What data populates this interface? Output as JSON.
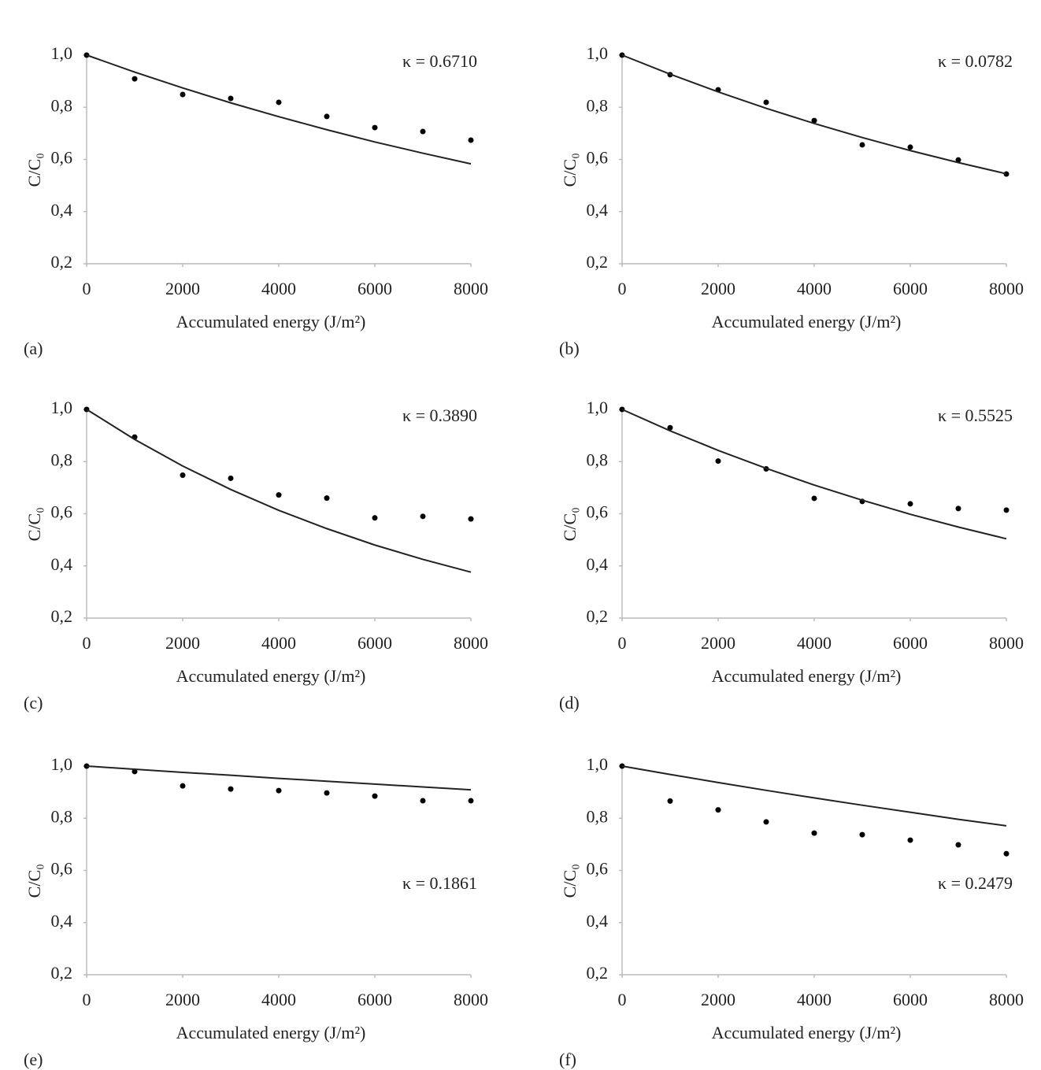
{
  "chart_data": [
    {
      "type": "scatter",
      "panel_label": "(a)",
      "annotation": "κ = 0.6710",
      "annotation_position": "top-right",
      "xlabel": "Accumulated energy (J/m²)",
      "ylabel": "C/C₀",
      "x": [
        0,
        1000,
        2000,
        3000,
        4000,
        5000,
        6000,
        7000,
        8000
      ],
      "series": [
        {
          "type": "points",
          "color": "#000000",
          "values": [
            1.0,
            0.909,
            0.849,
            0.834,
            0.819,
            0.765,
            0.722,
            0.707,
            0.674
          ]
        },
        {
          "type": "line",
          "color": "#222222",
          "values": [
            1.0,
            0.935,
            0.874,
            0.817,
            0.764,
            0.714,
            0.667,
            0.624,
            0.583
          ]
        }
      ],
      "xlim": [
        0,
        8000
      ],
      "xticks": [
        0,
        2000,
        4000,
        6000,
        8000
      ],
      "ylim": [
        0.2,
        1.0
      ],
      "yticks": [
        {
          "value": 0.2,
          "label": "0,2"
        },
        {
          "value": 0.4,
          "label": "0,4"
        },
        {
          "value": 0.6,
          "label": "0,6"
        },
        {
          "value": 0.8,
          "label": "0,8"
        },
        {
          "value": 1.0,
          "label": "1,0"
        }
      ]
    },
    {
      "type": "scatter",
      "panel_label": "(b)",
      "annotation": "κ = 0.0782",
      "annotation_position": "top-right",
      "xlabel": "Accumulated energy (J/m²)",
      "ylabel": "C/C₀",
      "x": [
        0,
        1000,
        2000,
        3000,
        4000,
        5000,
        6000,
        7000,
        8000
      ],
      "series": [
        {
          "type": "points",
          "color": "#000000",
          "values": [
            1.0,
            0.925,
            0.867,
            0.819,
            0.749,
            0.656,
            0.647,
            0.598,
            0.544
          ]
        },
        {
          "type": "line",
          "color": "#222222",
          "values": [
            1.0,
            0.927,
            0.859,
            0.796,
            0.738,
            0.684,
            0.634,
            0.588,
            0.545
          ]
        }
      ],
      "xlim": [
        0,
        8000
      ],
      "xticks": [
        0,
        2000,
        4000,
        6000,
        8000
      ],
      "ylim": [
        0.2,
        1.0
      ],
      "yticks": [
        {
          "value": 0.2,
          "label": "0,2"
        },
        {
          "value": 0.4,
          "label": "0,4"
        },
        {
          "value": 0.6,
          "label": "0,6"
        },
        {
          "value": 0.8,
          "label": "0,8"
        },
        {
          "value": 1.0,
          "label": "1,0"
        }
      ]
    },
    {
      "type": "scatter",
      "panel_label": "(c)",
      "annotation": "κ = 0.3890",
      "annotation_position": "top-right",
      "xlabel": "Accumulated energy (J/m²)",
      "ylabel": "C/C₀",
      "x": [
        0,
        1000,
        2000,
        3000,
        4000,
        5000,
        6000,
        7000,
        8000
      ],
      "series": [
        {
          "type": "points",
          "color": "#000000",
          "values": [
            1.0,
            0.894,
            0.748,
            0.736,
            0.672,
            0.66,
            0.584,
            0.59,
            0.58
          ]
        },
        {
          "type": "line",
          "color": "#222222",
          "values": [
            1.0,
            0.885,
            0.783,
            0.693,
            0.613,
            0.543,
            0.48,
            0.425,
            0.376
          ]
        }
      ],
      "xlim": [
        0,
        8000
      ],
      "xticks": [
        0,
        2000,
        4000,
        6000,
        8000
      ],
      "ylim": [
        0.2,
        1.0
      ],
      "yticks": [
        {
          "value": 0.2,
          "label": "0,2"
        },
        {
          "value": 0.4,
          "label": "0,4"
        },
        {
          "value": 0.6,
          "label": "0,6"
        },
        {
          "value": 0.8,
          "label": "0,8"
        },
        {
          "value": 1.0,
          "label": "1,0"
        }
      ]
    },
    {
      "type": "scatter",
      "panel_label": "(d)",
      "annotation": "κ = 0.5525",
      "annotation_position": "top-right",
      "xlabel": "Accumulated energy (J/m²)",
      "ylabel": "C/C₀",
      "x": [
        0,
        1000,
        2000,
        3000,
        4000,
        5000,
        6000,
        7000,
        8000
      ],
      "series": [
        {
          "type": "points",
          "color": "#000000",
          "values": [
            1.0,
            0.93,
            0.802,
            0.772,
            0.659,
            0.647,
            0.638,
            0.62,
            0.614
          ]
        },
        {
          "type": "line",
          "color": "#222222",
          "values": [
            1.0,
            0.918,
            0.843,
            0.774,
            0.71,
            0.652,
            0.598,
            0.549,
            0.504
          ]
        }
      ],
      "xlim": [
        0,
        8000
      ],
      "xticks": [
        0,
        2000,
        4000,
        6000,
        8000
      ],
      "ylim": [
        0.2,
        1.0
      ],
      "yticks": [
        {
          "value": 0.2,
          "label": "0,2"
        },
        {
          "value": 0.4,
          "label": "0,4"
        },
        {
          "value": 0.6,
          "label": "0,6"
        },
        {
          "value": 0.8,
          "label": "0,8"
        },
        {
          "value": 1.0,
          "label": "1,0"
        }
      ]
    },
    {
      "type": "scatter",
      "panel_label": "(e)",
      "annotation": "κ = 0.1861",
      "annotation_position": "middle-right",
      "xlabel": "Accumulated energy (J/m²)",
      "ylabel": "C/C₀",
      "x": [
        0,
        1000,
        2000,
        3000,
        4000,
        5000,
        6000,
        7000,
        8000
      ],
      "series": [
        {
          "type": "points",
          "color": "#000000",
          "values": [
            1.0,
            0.979,
            0.924,
            0.912,
            0.906,
            0.897,
            0.885,
            0.867,
            0.867
          ]
        },
        {
          "type": "line",
          "color": "#222222",
          "values": [
            1.0,
            0.988,
            0.976,
            0.965,
            0.953,
            0.942,
            0.931,
            0.92,
            0.909
          ]
        }
      ],
      "xlim": [
        0,
        8000
      ],
      "xticks": [
        0,
        2000,
        4000,
        6000,
        8000
      ],
      "ylim": [
        0.2,
        1.0
      ],
      "yticks": [
        {
          "value": 0.2,
          "label": "0,2"
        },
        {
          "value": 0.4,
          "label": "0,4"
        },
        {
          "value": 0.6,
          "label": "0,6"
        },
        {
          "value": 0.8,
          "label": "0,8"
        },
        {
          "value": 1.0,
          "label": "1,0"
        }
      ]
    },
    {
      "type": "scatter",
      "panel_label": "(f)",
      "annotation": "κ = 0.2479",
      "annotation_position": "middle-right",
      "xlabel": "Accumulated energy (J/m²)",
      "ylabel": "C/C₀",
      "x": [
        0,
        1000,
        2000,
        3000,
        4000,
        5000,
        6000,
        7000,
        8000
      ],
      "series": [
        {
          "type": "points",
          "color": "#000000",
          "values": [
            1.0,
            0.866,
            0.832,
            0.786,
            0.743,
            0.737,
            0.716,
            0.698,
            0.664
          ]
        },
        {
          "type": "line",
          "color": "#222222",
          "values": [
            1.0,
            0.968,
            0.937,
            0.907,
            0.878,
            0.85,
            0.823,
            0.796,
            0.771
          ]
        }
      ],
      "xlim": [
        0,
        8000
      ],
      "xticks": [
        0,
        2000,
        4000,
        6000,
        8000
      ],
      "ylim": [
        0.2,
        1.0
      ],
      "yticks": [
        {
          "value": 0.2,
          "label": "0,2"
        },
        {
          "value": 0.4,
          "label": "0,4"
        },
        {
          "value": 0.6,
          "label": "0,6"
        },
        {
          "value": 0.8,
          "label": "0,8"
        },
        {
          "value": 1.0,
          "label": "1,0"
        }
      ]
    }
  ]
}
